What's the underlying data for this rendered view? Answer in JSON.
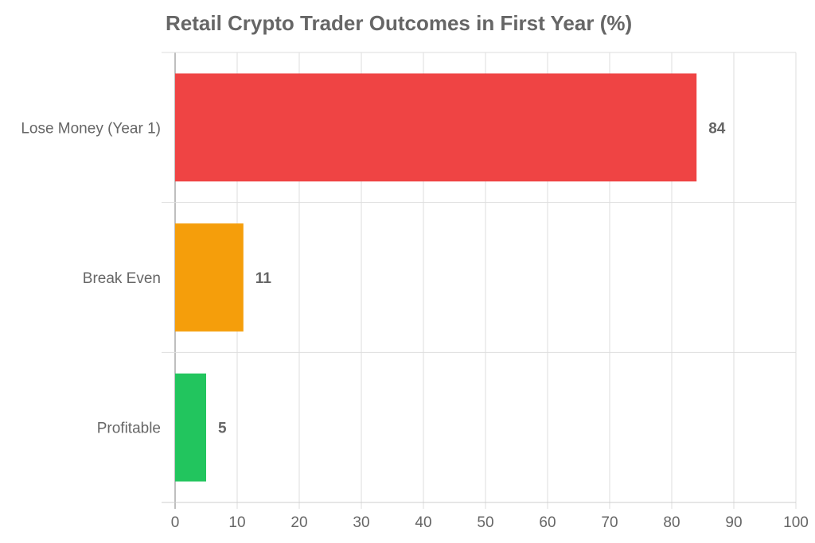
{
  "chart_data": {
    "type": "bar",
    "orientation": "horizontal",
    "title": "Retail Crypto Trader Outcomes in First Year (%)",
    "xlabel": "",
    "ylabel": "",
    "categories": [
      "Lose Money (Year 1)",
      "Break Even",
      "Profitable"
    ],
    "values": [
      84,
      11,
      5
    ],
    "colors": [
      "#ef4444",
      "#f59e0b",
      "#22c55e"
    ],
    "data_labels": [
      "84",
      "11",
      "5"
    ],
    "xlim": [
      0,
      100
    ],
    "xticks": [
      0,
      10,
      20,
      30,
      40,
      50,
      60,
      70,
      80,
      90,
      100
    ],
    "grid": true,
    "legend": null
  }
}
